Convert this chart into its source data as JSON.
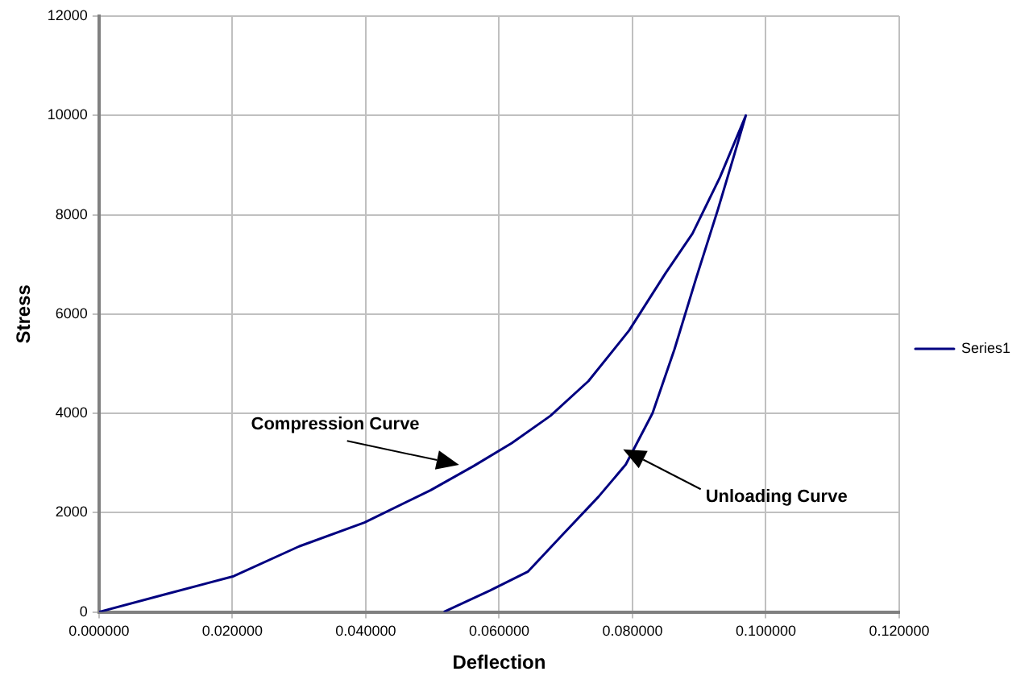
{
  "chart_data": {
    "type": "line",
    "xlabel": "Deflection",
    "ylabel": "Stress",
    "series": [
      {
        "name": "Series1",
        "color": "#000080",
        "x": [
          0,
          0.0098,
          0.0202,
          0.03,
          0.0398,
          0.0497,
          0.0562,
          0.0619,
          0.0677,
          0.0734,
          0.0795,
          0.0849,
          0.089,
          0.0931,
          0.097,
          0.0952,
          0.0928,
          0.0895,
          0.0863,
          0.083,
          0.079,
          0.0749,
          0.0692,
          0.0643,
          0.0586,
          0.0517
        ],
        "values": [
          0,
          350,
          720,
          1320,
          1800,
          2450,
          2940,
          3400,
          3950,
          4650,
          5670,
          6810,
          7620,
          8750,
          10000,
          9180,
          8100,
          6700,
          5290,
          4000,
          2970,
          2320,
          1510,
          810,
          430,
          0
        ]
      }
    ],
    "xlim": [
      0,
      0.12
    ],
    "xticks": [
      {
        "value": 0,
        "label": "0.000000"
      },
      {
        "value": 0.02,
        "label": "0.020000"
      },
      {
        "value": 0.04,
        "label": "0.040000"
      },
      {
        "value": 0.06,
        "label": "0.060000"
      },
      {
        "value": 0.08,
        "label": "0.080000"
      },
      {
        "value": 0.1,
        "label": "0.100000"
      },
      {
        "value": 0.12,
        "label": "0.120000"
      }
    ],
    "ylim": [
      0,
      12000
    ],
    "yticks": [
      0,
      2000,
      4000,
      6000,
      8000,
      10000,
      12000
    ],
    "grid": true,
    "legend": "right",
    "marker": "none",
    "line_style": "solid",
    "annotations": [
      "Compression Curve",
      "Unloading Curve"
    ]
  }
}
